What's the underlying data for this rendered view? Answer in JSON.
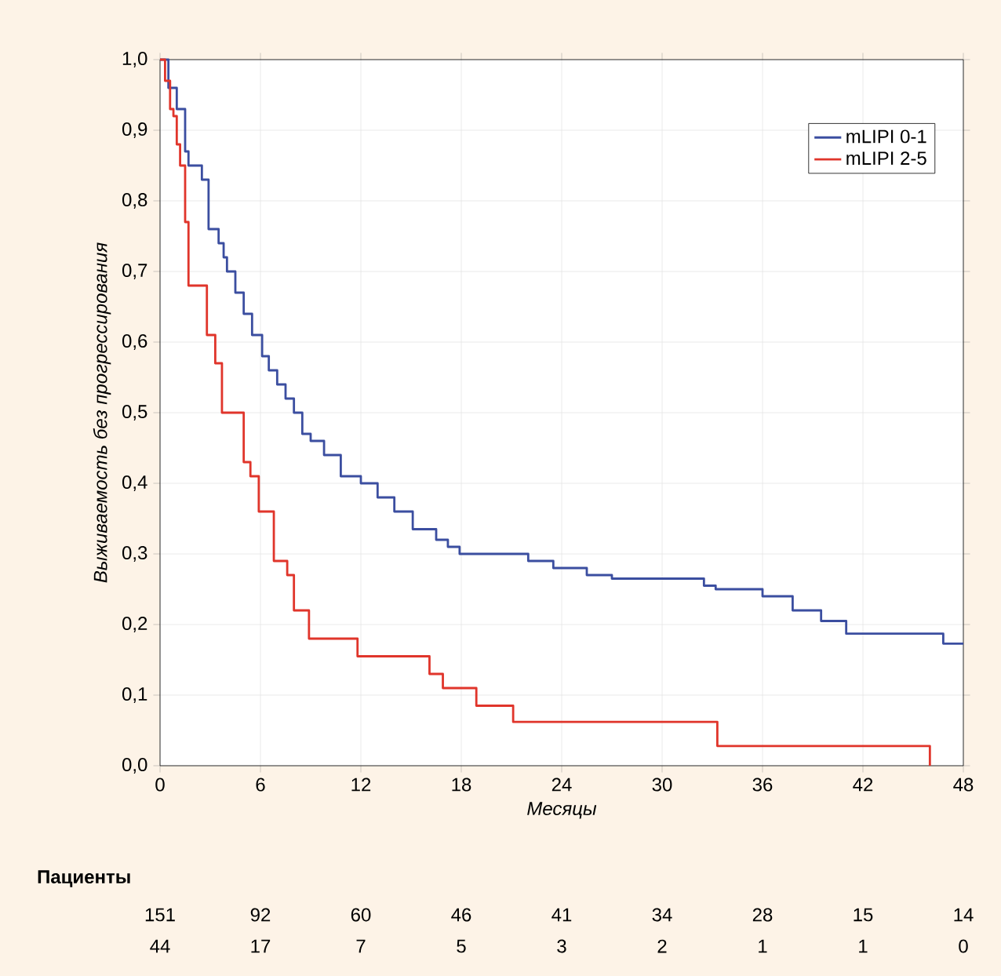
{
  "chart_data": {
    "type": "step",
    "xlabel": "Месяцы",
    "ylabel": "Выживаемость без прогрессирования",
    "xlim": [
      0,
      48
    ],
    "ylim": [
      0,
      1.0
    ],
    "xticks": [
      0,
      6,
      12,
      18,
      24,
      30,
      36,
      42,
      48
    ],
    "yticks": [
      {
        "value": 0,
        "label": "0,0"
      },
      {
        "value": 0.1,
        "label": "0,1"
      },
      {
        "value": 0.2,
        "label": "0,2"
      },
      {
        "value": 0.3,
        "label": "0,3"
      },
      {
        "value": 0.4,
        "label": "0,4"
      },
      {
        "value": 0.5,
        "label": "0,5"
      },
      {
        "value": 0.6,
        "label": "0,6"
      },
      {
        "value": 0.7,
        "label": "0,7"
      },
      {
        "value": 0.8,
        "label": "0,8"
      },
      {
        "value": 0.9,
        "label": "0,9"
      },
      {
        "value": 1.0,
        "label": "1,0"
      }
    ],
    "grid": true,
    "legend": "top right",
    "marker": "none",
    "series": [
      {
        "name": "mLIPI 0-1",
        "color": "#3b4ea0",
        "x": [
          0,
          0.5,
          1.0,
          1.5,
          1.7,
          2.5,
          2.9,
          3.5,
          3.8,
          4.0,
          4.5,
          5.0,
          5.5,
          6.1,
          6.5,
          7.0,
          7.5,
          8.0,
          8.5,
          9.0,
          9.8,
          10.8,
          12,
          13,
          14,
          15.1,
          16.5,
          17.2,
          17.9,
          22,
          23.5,
          25.5,
          27,
          32.5,
          33.2,
          36,
          37.8,
          39.5,
          41,
          46.8,
          48
        ],
        "values": [
          1.0,
          0.96,
          0.93,
          0.87,
          0.85,
          0.83,
          0.76,
          0.74,
          0.72,
          0.7,
          0.67,
          0.64,
          0.61,
          0.58,
          0.56,
          0.54,
          0.52,
          0.5,
          0.47,
          0.46,
          0.44,
          0.41,
          0.4,
          0.38,
          0.36,
          0.335,
          0.32,
          0.31,
          0.3,
          0.29,
          0.28,
          0.27,
          0.265,
          0.255,
          0.25,
          0.24,
          0.22,
          0.205,
          0.187,
          0.173,
          0.173
        ]
      },
      {
        "name": "mLIPI 2-5",
        "color": "#e0352b",
        "x": [
          0,
          0.3,
          0.6,
          0.8,
          1.0,
          1.2,
          1.5,
          1.7,
          2.8,
          3.3,
          3.7,
          5.0,
          5.4,
          5.9,
          6.8,
          7.6,
          8.0,
          8.9,
          11.8,
          16.1,
          16.9,
          18.9,
          21.1,
          33.3,
          46
        ],
        "values": [
          1.0,
          0.97,
          0.93,
          0.92,
          0.88,
          0.85,
          0.77,
          0.68,
          0.61,
          0.57,
          0.5,
          0.43,
          0.41,
          0.36,
          0.29,
          0.27,
          0.22,
          0.18,
          0.155,
          0.13,
          0.11,
          0.085,
          0.062,
          0.028,
          0.0
        ]
      }
    ],
    "annotations": [
      "Пациенты",
      "151",
      "92",
      "60",
      "46",
      "41",
      "34",
      "28",
      "15",
      "14",
      "44",
      "17",
      "7",
      "5",
      "3",
      "2",
      "1",
      "1",
      "0"
    ]
  }
}
